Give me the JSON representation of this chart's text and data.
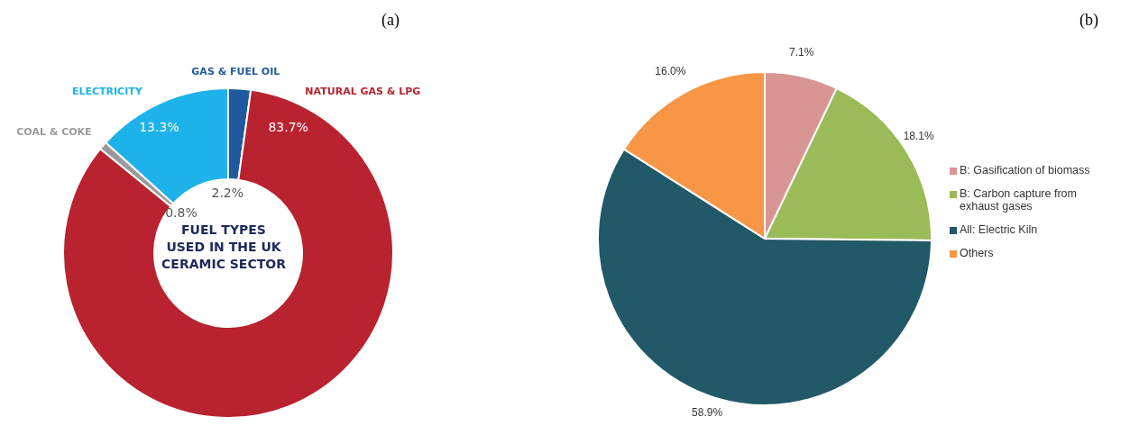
{
  "chart_data": [
    {
      "type": "donut",
      "title": "(a)",
      "annotations": [
        "FUEL TYPES USED IN THE UK CERAMIC SECTOR"
      ],
      "categories": [
        "GAS & FUEL OIL",
        "NATURAL GAS & LPG",
        "COAL & COKE",
        "ELECTRICITY"
      ],
      "values": [
        2.2,
        83.7,
        0.8,
        13.3
      ],
      "value_labels": [
        "2.2%",
        "83.7%",
        "0.8%",
        "13.3%"
      ],
      "colors": [
        "#1f5a9e",
        "#b8232f",
        "#9a9a9a",
        "#1eb2ea"
      ],
      "legend": false
    },
    {
      "type": "pie",
      "title": "(b)",
      "categories": [
        "B: Gasification of biomass",
        "B: Carbon capture from exhaust gases",
        "All: Electric Kiln",
        "Others"
      ],
      "values": [
        7.1,
        18.1,
        58.9,
        16.0
      ],
      "value_labels": [
        "7.1%",
        "18.1%",
        "58.9%",
        "16.0%"
      ],
      "colors": [
        "#d99594",
        "#9bbb59",
        "#215968",
        "#f79646"
      ],
      "legend": "right"
    }
  ]
}
